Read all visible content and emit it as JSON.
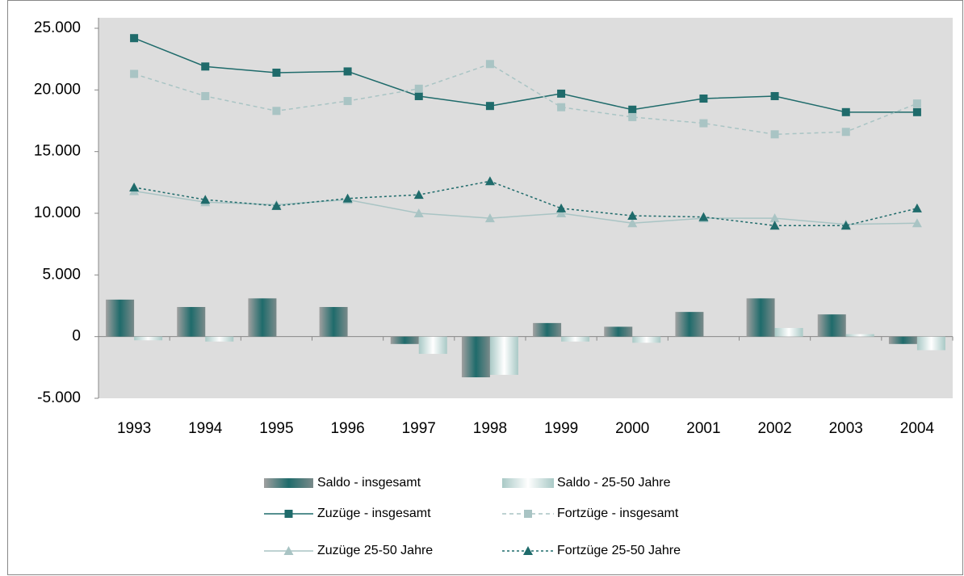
{
  "chart_data": {
    "type": "bar",
    "categories": [
      "1993",
      "1994",
      "1995",
      "1996",
      "1997",
      "1998",
      "1999",
      "2000",
      "2001",
      "2002",
      "2003",
      "2004"
    ],
    "series": [
      {
        "name": "Saldo - insgesamt",
        "type": "bar",
        "color": "#1f6b6b",
        "values": [
          3000,
          2400,
          3100,
          2400,
          -600,
          -3300,
          1100,
          800,
          2000,
          3100,
          1800,
          -600
        ]
      },
      {
        "name": "Saldo - 25-50 Jahre",
        "type": "bar",
        "color": "#a9c9c6",
        "values": [
          -300,
          -400,
          0,
          0,
          -1400,
          -3100,
          -400,
          -500,
          0,
          700,
          200,
          -1100
        ]
      },
      {
        "name": "Zuzüge - insgesamt",
        "type": "line",
        "color": "#1f6b6b",
        "marker": "square",
        "dash": "none",
        "values": [
          24200,
          21900,
          21400,
          21500,
          19500,
          18700,
          19700,
          18400,
          19300,
          19500,
          18200,
          18200
        ]
      },
      {
        "name": "Fortzüge - insgesamt",
        "type": "line",
        "color": "#a9c4c4",
        "marker": "square",
        "dash": "dashed",
        "values": [
          21300,
          19500,
          18300,
          19100,
          20100,
          22100,
          18600,
          17800,
          17300,
          16400,
          16600,
          18900
        ]
      },
      {
        "name": "Zuzüge 25-50 Jahre",
        "type": "line",
        "color": "#a9c4c4",
        "marker": "triangle",
        "dash": "none",
        "values": [
          11800,
          10900,
          10700,
          11100,
          10000,
          9600,
          10000,
          9200,
          9600,
          9600,
          9100,
          9200
        ]
      },
      {
        "name": "Fortzüge 25-50 Jahre",
        "type": "line",
        "color": "#1f6b6b",
        "marker": "triangle",
        "dash": "dotted",
        "values": [
          12100,
          11100,
          10600,
          11200,
          11500,
          12600,
          10400,
          9800,
          9700,
          9000,
          9000,
          10400
        ]
      }
    ],
    "ylim": [
      -5000,
      25000
    ],
    "yticks": [
      {
        "value": -5000,
        "label": "-5.000"
      },
      0,
      {
        "value": 5000,
        "label": "5.000"
      },
      {
        "value": 10000,
        "label": "10.000"
      },
      {
        "value": 15000,
        "label": "15.000"
      },
      {
        "value": 20000,
        "label": "20.000"
      },
      {
        "value": 25000,
        "label": "25.000"
      }
    ],
    "grid": false,
    "legend": "bottom"
  }
}
